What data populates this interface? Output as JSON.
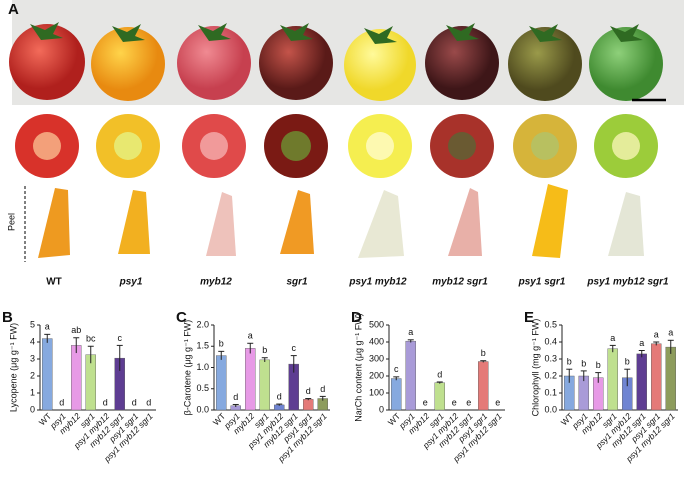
{
  "panel_a": {
    "label": "A",
    "peel_label": "Peel",
    "genotypes": [
      "WT",
      "psy1",
      "myb12",
      "sgr1",
      "psy1 myb12",
      "myb12 sgr1",
      "psy1 sgr1",
      "psy1 myb12 sgr1"
    ]
  },
  "chart_data": [
    {
      "type": "bar",
      "panel": "B",
      "ylabel": "Lycopene (μg g⁻¹ FW)",
      "categories": [
        "WT",
        "psy1",
        "myb12",
        "sgr1",
        "psy1 myb12",
        "myb12 sgr1",
        "psy1 sgr1",
        "psy1 myb12 sgr1"
      ],
      "values": [
        4.2,
        0,
        3.8,
        3.25,
        0,
        3.05,
        0,
        0
      ],
      "errors": [
        0.25,
        0,
        0.45,
        0.5,
        0,
        0.75,
        0,
        0
      ],
      "letters": [
        "a",
        "d",
        "ab",
        "bc",
        "d",
        "c",
        "d",
        "d"
      ],
      "colors": [
        "#86a9df",
        "#a99bd8",
        "#e79ae6",
        "#bfe08f",
        "#6f84d2",
        "#5e3d92",
        "#e47a78",
        "#8d9c5c"
      ],
      "ylim": [
        0,
        5
      ],
      "yticks": [
        0,
        1,
        2,
        3,
        4,
        5
      ]
    },
    {
      "type": "bar",
      "panel": "C",
      "ylabel": "β-Carotene (μg g⁻¹ FW)",
      "categories": [
        "WT",
        "psy1",
        "myb12",
        "sgr1",
        "psy1 myb12",
        "myb12 sgr1",
        "psy1 sgr1",
        "psy1 myb12 sgr1"
      ],
      "values": [
        1.28,
        0.1,
        1.45,
        1.18,
        0.12,
        1.08,
        0.25,
        0.27
      ],
      "errors": [
        0.1,
        0.03,
        0.12,
        0.05,
        0.02,
        0.2,
        0.02,
        0.05
      ],
      "letters": [
        "b",
        "d",
        "a",
        "b",
        "d",
        "c",
        "d",
        "d"
      ],
      "colors": [
        "#86a9df",
        "#a99bd8",
        "#e79ae6",
        "#bfe08f",
        "#6f84d2",
        "#5e3d92",
        "#e47a78",
        "#8d9c5c"
      ],
      "ylim": [
        0,
        2
      ],
      "yticks": [
        {
          "value": 0,
          "label": "0.0"
        },
        0.5,
        {
          "value": 1,
          "label": "1.0"
        },
        1.5,
        {
          "value": 2,
          "label": "2.0"
        }
      ]
    },
    {
      "type": "bar",
      "panel": "D",
      "ylabel": "NarCh content (μg g⁻¹ FW)",
      "categories": [
        "WT",
        "psy1",
        "myb12",
        "sgr1",
        "psy1 myb12",
        "myb12 sgr1",
        "psy1 sgr1",
        "psy1 myb12 sgr1"
      ],
      "values": [
        185,
        405,
        0,
        160,
        0,
        0,
        285,
        0
      ],
      "errors": [
        10,
        8,
        0,
        5,
        0,
        0,
        5,
        0
      ],
      "letters": [
        "c",
        "a",
        "e",
        "d",
        "e",
        "e",
        "b",
        "e"
      ],
      "colors": [
        "#86a9df",
        "#a99bd8",
        "#e79ae6",
        "#bfe08f",
        "#6f84d2",
        "#5e3d92",
        "#e47a78",
        "#8d9c5c"
      ],
      "ylim": [
        0,
        500
      ],
      "yticks": [
        0,
        100,
        200,
        300,
        400,
        500
      ]
    },
    {
      "type": "bar",
      "panel": "E",
      "ylabel": "Chlorophyll (mg g⁻¹ FW)",
      "categories": [
        "WT",
        "psy1",
        "myb12",
        "sgr1",
        "psy1 myb12",
        "myb12 sgr1",
        "psy1 sgr1",
        "psy1 myb12 sgr1"
      ],
      "values": [
        0.2,
        0.2,
        0.19,
        0.36,
        0.19,
        0.33,
        0.39,
        0.37
      ],
      "errors": [
        0.04,
        0.03,
        0.03,
        0.02,
        0.05,
        0.02,
        0.01,
        0.04
      ],
      "letters": [
        "b",
        "b",
        "b",
        "a",
        "b",
        "a",
        "a",
        "a"
      ],
      "colors": [
        "#86a9df",
        "#a99bd8",
        "#e79ae6",
        "#bfe08f",
        "#6f84d2",
        "#5e3d92",
        "#e47a78",
        "#8d9c5c"
      ],
      "ylim": [
        0,
        0.5
      ],
      "yticks": [
        {
          "value": 0,
          "label": "0.0"
        },
        0.1,
        0.2,
        0.3,
        0.4,
        0.5
      ]
    }
  ]
}
